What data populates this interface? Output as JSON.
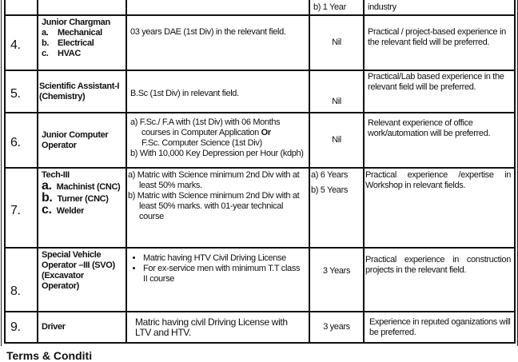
{
  "top_row": {
    "experience": "b)  1 Year",
    "preference": "industry"
  },
  "rows": [
    {
      "no": "4.",
      "post": "Junior Chargman",
      "subposts": [
        "a.",
        "Mechanical",
        "b.",
        "Electrical",
        "c.",
        "HVAC"
      ],
      "qualification": "03 years DAE (1st Div) in the relevant field.",
      "experience": "Nil",
      "preference": "Practical / project-based experience in the relevant field will be preferred."
    },
    {
      "no": "5.",
      "post": "Scientific Assistant-I (Chemistry)",
      "qualification": "B.Sc (1st Div) in relevant field.",
      "experience": "Nil",
      "preference": "Practical/Lab based experience in the relevant field will be preferred."
    },
    {
      "no": "6.",
      "post": "Junior Computer Operator",
      "qualification_a": "a)  F.Sc./ F.A with (1st Div) with 06 Months courses in Computer Application",
      "qualification_or": "Or",
      "qualification_a2": "F.Sc. Computer Science (1st Div)",
      "qualification_b": "b)  With 10,000 Key Depression per Hour (kdph)",
      "experience": "Nil",
      "preference": "Relevant experience of office work/automation will be preferred."
    },
    {
      "no": "7.",
      "post": "Tech-III",
      "subposts": [
        "a.",
        "Machinist (CNC)",
        "b.",
        "Turner (CNC)",
        "c.",
        "Welder"
      ],
      "qualification_a": "a) Matric with Science minimum        2nd Div with at least 50% marks.",
      "qualification_b": "b) Matric with Science minimum        2nd Div with at least 50% marks. with 01-year technical course",
      "experience_a": "a)   6 Years",
      "experience_b": "b)  5 Years",
      "preference": "Practical experience /expertise in Workshop in relevant fields."
    },
    {
      "no": "8.",
      "post": "Special Vehicle Operator –III (SVO) (Excavator Operator)",
      "qualifications": [
        "Matric having HTV Civil Driving License",
        "For ex-service men with minimum T.T class II course"
      ],
      "experience": "3 Years",
      "preference": "Practical experience in construction projects in the relevant field."
    },
    {
      "no": "9.",
      "post": "Driver",
      "qualification": "Matric having civil Driving License with LTV and HTV.",
      "experience": "3 years",
      "preference": "Experience in reputed oganizations will be preferred."
    }
  ],
  "footer_heading": "Terms & Conditi"
}
